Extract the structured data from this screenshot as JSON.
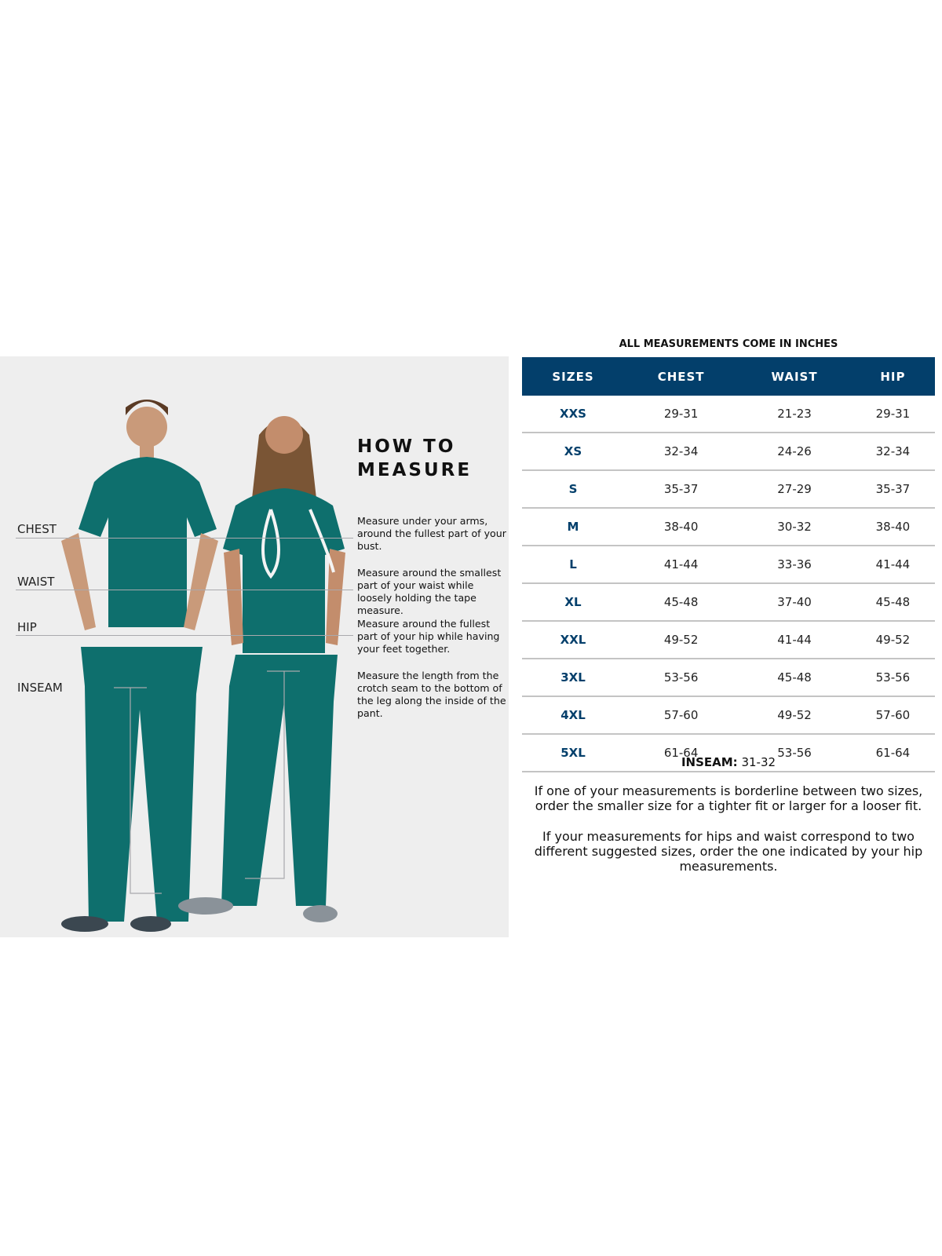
{
  "colors": {
    "header_bg": "#033f6b",
    "size_text": "#033f6b",
    "panel_bg": "#eeeeee",
    "scrubs": "#0e6f6d"
  },
  "how_to": {
    "title_line1": "HOW TO",
    "title_line2": "MEASURE",
    "labels": {
      "chest": "CHEST",
      "waist": "WAIST",
      "hip": "HIP",
      "inseam": "INSEAM"
    },
    "descriptions": {
      "chest": "Measure under your arms, around the fullest part of your bust.",
      "waist": "Measure around the smallest part of your waist while loosely holding the tape measure.",
      "hip": "Measure around the fullest part of your hip while having your feet together.",
      "inseam": "Measure the length from the crotch seam to the bottom of the leg along the inside of the pant."
    }
  },
  "table": {
    "caption": "ALL MEASUREMENTS COME IN INCHES",
    "headers": [
      "SIZES",
      "CHEST",
      "WAIST",
      "HIP"
    ],
    "rows": [
      [
        "XXS",
        "29-31",
        "21-23",
        "29-31"
      ],
      [
        "XS",
        "32-34",
        "24-26",
        "32-34"
      ],
      [
        "S",
        "35-37",
        "27-29",
        "35-37"
      ],
      [
        "M",
        "38-40",
        "30-32",
        "38-40"
      ],
      [
        "L",
        "41-44",
        "33-36",
        "41-44"
      ],
      [
        "XL",
        "45-48",
        "37-40",
        "45-48"
      ],
      [
        "XXL",
        "49-52",
        "41-44",
        "49-52"
      ],
      [
        "3XL",
        "53-56",
        "45-48",
        "53-56"
      ],
      [
        "4XL",
        "57-60",
        "49-52",
        "57-60"
      ],
      [
        "5XL",
        "61-64",
        "53-56",
        "61-64"
      ]
    ]
  },
  "inseam": {
    "label": "INSEAM:",
    "value": " 31-32"
  },
  "notes": [
    "If one of your measurements is borderline between two sizes, order the smaller size for a tighter fit or larger for a looser fit.",
    "If your measurements for hips and waist correspond to two different suggested sizes, order the one indicated by your hip measurements."
  ]
}
